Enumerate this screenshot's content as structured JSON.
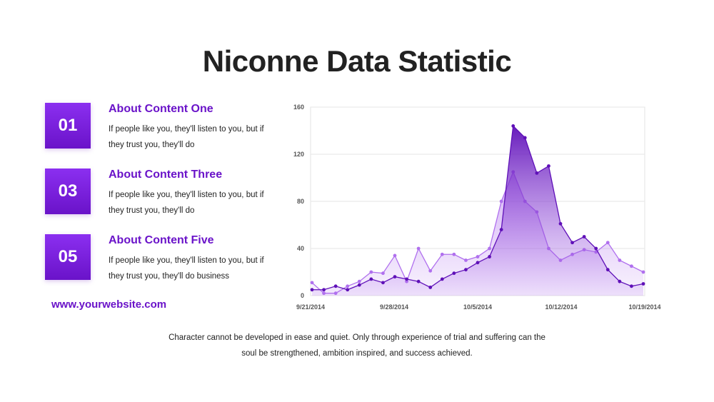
{
  "title": "Niconne Data Statistic",
  "items": [
    {
      "number": "01",
      "heading": "About Content One",
      "text": "If people like you, they'll listen to you, but if they trust you, they'll do"
    },
    {
      "number": "03",
      "heading": "About Content Three",
      "text": "If people like you, they'll listen to you, but if they trust you, they'll do"
    },
    {
      "number": "05",
      "heading": "About Content Five",
      "text": "If people like you, they'll listen to you, but if they trust you, they'll do business"
    }
  ],
  "website": "www.yourwebsite.com",
  "footer": "Character cannot be developed in ease and quiet. Only through experience of trial and suffering can the soul be strengthened, ambition inspired, and success achieved.",
  "colors": {
    "accent": "#8b2ff0",
    "accent_dark": "#6a13c9",
    "series_dark": "#5f10b8",
    "series_light": "#b070ee",
    "text": "#222222"
  },
  "chart_data": {
    "type": "area",
    "x_tick_labels": [
      "9/21/2014",
      "9/28/2014",
      "10/5/2014",
      "10/12/2014",
      "10/19/2014"
    ],
    "y_ticks": [
      0,
      40,
      80,
      120,
      160
    ],
    "ylim": [
      0,
      160
    ],
    "grid": true,
    "series": [
      {
        "values": [
          5,
          5,
          8,
          5,
          9,
          14,
          11,
          16,
          14,
          12,
          7,
          14,
          19,
          22,
          28,
          33,
          56,
          144,
          134,
          104,
          110,
          61,
          45,
          50,
          40,
          22,
          12,
          8,
          10
        ]
      },
      {
        "values": [
          11,
          2,
          2,
          8,
          12,
          20,
          19,
          34,
          12,
          40,
          21,
          35,
          35,
          30,
          33,
          40,
          80,
          105,
          80,
          71,
          40,
          30,
          35,
          39,
          37,
          45,
          30,
          25,
          20
        ]
      }
    ]
  }
}
